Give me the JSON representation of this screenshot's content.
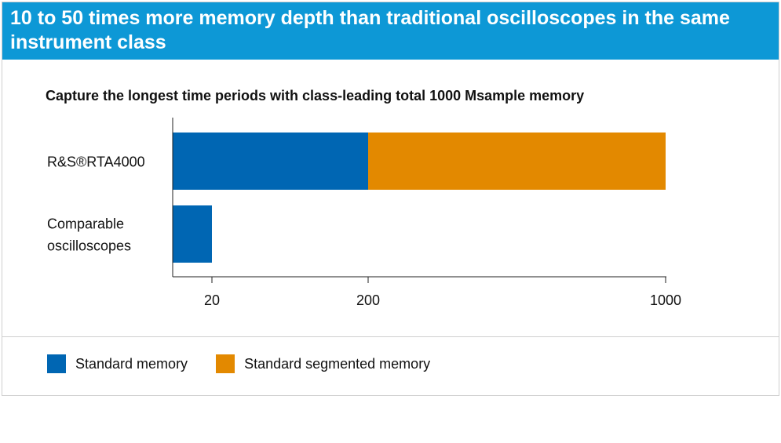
{
  "header": {
    "title": "10 to 50 times more memory depth than traditional oscilloscopes in the same instrument class"
  },
  "chart_data": {
    "type": "bar",
    "orientation": "horizontal",
    "stacked": true,
    "title": "Capture the longest time periods with class-leading total 1000 Msample memory",
    "categories": [
      "R&S®RTA4000",
      "Comparable\noscilloscopes"
    ],
    "series": [
      {
        "name": "Standard memory",
        "color": "#0066b3",
        "values": [
          200,
          20
        ]
      },
      {
        "name": "Standard segmented memory",
        "color": "#e38900",
        "values": [
          800,
          0
        ]
      }
    ],
    "x_ticks": [
      20,
      200,
      1000
    ],
    "tick_labels": [
      "20",
      "200",
      "1000"
    ],
    "xlim": [
      0,
      1000
    ],
    "xlabel": "",
    "ylabel": "",
    "grid": false,
    "legend_position": "bottom"
  }
}
